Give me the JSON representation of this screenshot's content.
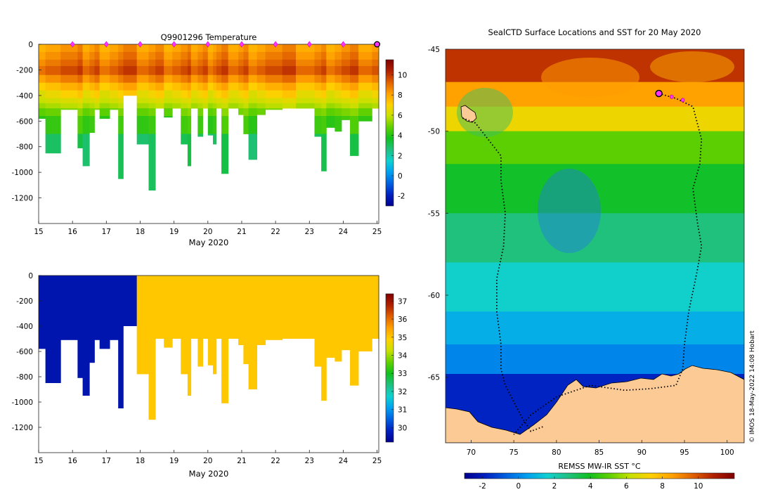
{
  "colormap": [
    "#00008f",
    "#0020c0",
    "#0060e0",
    "#00a0f0",
    "#10d0d0",
    "#20c080",
    "#10c020",
    "#60d000",
    "#c8e000",
    "#ffd000",
    "#ffa000",
    "#e06000",
    "#b02000",
    "#800000"
  ],
  "panel_temp": {
    "chart_data": {
      "type": "heatmap",
      "title": "Q9901296  Temperature",
      "xlabel": "May 2020",
      "ylabel": "",
      "xlim": [
        15,
        25.05
      ],
      "ylim": [
        -1400,
        0
      ],
      "x_ticks": [
        "15",
        "16",
        "17",
        "18",
        "19",
        "20",
        "21",
        "22",
        "23",
        "24",
        "25"
      ],
      "y_ticks": [
        "0",
        "-200",
        "-400",
        "-600",
        "-800",
        "-1000",
        "-1200"
      ],
      "profile_marker_days": [
        16,
        17,
        18,
        19,
        20,
        21,
        22,
        23,
        24
      ],
      "last_profile_marker_day": 25,
      "columns": [
        {
          "t0": 15.0,
          "t1": 15.2,
          "depth": 580
        },
        {
          "t0": 15.2,
          "t1": 15.65,
          "depth": 850
        },
        {
          "t0": 15.65,
          "t1": 16.15,
          "depth": 510
        },
        {
          "t0": 16.15,
          "t1": 16.3,
          "depth": 810
        },
        {
          "t0": 16.3,
          "t1": 16.5,
          "depth": 950
        },
        {
          "t0": 16.5,
          "t1": 16.65,
          "depth": 690
        },
        {
          "t0": 16.65,
          "t1": 16.8,
          "depth": 510
        },
        {
          "t0": 16.8,
          "t1": 17.1,
          "depth": 580
        },
        {
          "t0": 17.1,
          "t1": 17.35,
          "depth": 510
        },
        {
          "t0": 17.35,
          "t1": 17.5,
          "depth": 1050
        },
        {
          "t0": 17.5,
          "t1": 17.9,
          "depth": 400
        },
        {
          "t0": 17.9,
          "t1": 18.25,
          "depth": 780
        },
        {
          "t0": 18.25,
          "t1": 18.45,
          "depth": 1140
        },
        {
          "t0": 18.45,
          "t1": 18.7,
          "depth": 500
        },
        {
          "t0": 18.7,
          "t1": 18.95,
          "depth": 570
        },
        {
          "t0": 18.95,
          "t1": 19.2,
          "depth": 500
        },
        {
          "t0": 19.2,
          "t1": 19.4,
          "depth": 780
        },
        {
          "t0": 19.4,
          "t1": 19.5,
          "depth": 950
        },
        {
          "t0": 19.5,
          "t1": 19.7,
          "depth": 500
        },
        {
          "t0": 19.7,
          "t1": 19.85,
          "depth": 720
        },
        {
          "t0": 19.85,
          "t1": 20.0,
          "depth": 500
        },
        {
          "t0": 20.0,
          "t1": 20.15,
          "depth": 710
        },
        {
          "t0": 20.15,
          "t1": 20.25,
          "depth": 780
        },
        {
          "t0": 20.25,
          "t1": 20.4,
          "depth": 500
        },
        {
          "t0": 20.4,
          "t1": 20.6,
          "depth": 1010
        },
        {
          "t0": 20.6,
          "t1": 20.9,
          "depth": 500
        },
        {
          "t0": 20.9,
          "t1": 21.05,
          "depth": 550
        },
        {
          "t0": 21.05,
          "t1": 21.2,
          "depth": 700
        },
        {
          "t0": 21.2,
          "t1": 21.45,
          "depth": 900
        },
        {
          "t0": 21.45,
          "t1": 21.7,
          "depth": 550
        },
        {
          "t0": 21.7,
          "t1": 22.2,
          "depth": 510
        },
        {
          "t0": 22.2,
          "t1": 22.6,
          "depth": 500
        },
        {
          "t0": 22.6,
          "t1": 23.15,
          "depth": 500
        },
        {
          "t0": 23.15,
          "t1": 23.35,
          "depth": 720
        },
        {
          "t0": 23.35,
          "t1": 23.5,
          "depth": 990
        },
        {
          "t0": 23.5,
          "t1": 23.75,
          "depth": 650
        },
        {
          "t0": 23.75,
          "t1": 23.95,
          "depth": 680
        },
        {
          "t0": 23.95,
          "t1": 24.2,
          "depth": 590
        },
        {
          "t0": 24.2,
          "t1": 24.45,
          "depth": 870
        },
        {
          "t0": 24.45,
          "t1": 24.85,
          "depth": 600
        },
        {
          "t0": 24.85,
          "t1": 25.05,
          "depth": 500
        }
      ],
      "colorbar": {
        "min": -3,
        "max": 11.5,
        "ticks": [
          "10",
          "8",
          "6",
          "4",
          "2",
          "0",
          "-2"
        ]
      },
      "layers": [
        {
          "d0": 0,
          "d1": 60,
          "value": 8.2
        },
        {
          "d0": 60,
          "d1": 120,
          "value": 8.6
        },
        {
          "d0": 120,
          "d1": 170,
          "value": 9.0
        },
        {
          "d0": 170,
          "d1": 240,
          "value": 9.5
        },
        {
          "d0": 240,
          "d1": 300,
          "value": 8.6
        },
        {
          "d0": 300,
          "d1": 360,
          "value": 7.6
        },
        {
          "d0": 360,
          "d1": 420,
          "value": 6.8
        },
        {
          "d0": 420,
          "d1": 460,
          "value": 6.2
        },
        {
          "d0": 460,
          "d1": 500,
          "value": 5.7
        },
        {
          "d0": 500,
          "d1": 560,
          "value": 5.0
        },
        {
          "d0": 560,
          "d1": 700,
          "value": 4.3
        },
        {
          "d0": 700,
          "d1": 2000,
          "value": 3.0
        }
      ]
    }
  },
  "panel_sal": {
    "chart_data": {
      "type": "heatmap",
      "title": "",
      "xlabel": "May 2020",
      "xlim": [
        15,
        25.05
      ],
      "ylim": [
        -1400,
        0
      ],
      "x_ticks": [
        "15",
        "16",
        "17",
        "18",
        "19",
        "20",
        "21",
        "22",
        "23",
        "24",
        "25"
      ],
      "y_ticks": [
        "0",
        "-200",
        "-400",
        "-600",
        "-800",
        "-1000",
        "-1200"
      ],
      "colorbar": {
        "min": 29.2,
        "max": 37.4,
        "ticks": [
          "37",
          "36",
          "35",
          "34",
          "33",
          "32",
          "31",
          "30"
        ]
      },
      "segments": [
        {
          "t0": 15.0,
          "t1": 17.9,
          "value": 29.6
        },
        {
          "t0": 17.9,
          "t1": 25.05,
          "value": 35.0
        }
      ]
    }
  },
  "panel_map": {
    "chart_data": {
      "type": "heatmap",
      "title": "SealCTD Surface Locations and SST for 20 May 2020",
      "colorbar_label": "REMSS MW-IR SST °C",
      "xlim": [
        67,
        102
      ],
      "ylim": [
        -69,
        -45
      ],
      "x_ticks": [
        "70",
        "75",
        "80",
        "85",
        "90",
        "95",
        "100"
      ],
      "y_ticks": [
        "-45",
        "-50",
        "-55",
        "-60",
        "-65"
      ],
      "colorbar": {
        "min": -3,
        "max": 12,
        "ticks": [
          "-2",
          "0",
          "2",
          "4",
          "6",
          "8",
          "10"
        ]
      },
      "sst_bands": [
        {
          "lat0": -45,
          "lat1": -47,
          "value": 10.5
        },
        {
          "lat0": -47,
          "lat1": -48.5,
          "value": 8.5
        },
        {
          "lat0": -48.5,
          "lat1": -50,
          "value": 7.0
        },
        {
          "lat0": -50,
          "lat1": -52,
          "value": 5.0
        },
        {
          "lat0": -52,
          "lat1": -55,
          "value": 3.8
        },
        {
          "lat0": -55,
          "lat1": -58,
          "value": 2.8
        },
        {
          "lat0": -58,
          "lat1": -61,
          "value": 1.7
        },
        {
          "lat0": -61,
          "lat1": -63,
          "value": 0.8
        },
        {
          "lat0": -63,
          "lat1": -64.8,
          "value": 0.0
        },
        {
          "lat0": -64.8,
          "lat1": -69,
          "value": -1.8
        }
      ],
      "track_west": [
        [
          69.0,
          -49.2
        ],
        [
          70.5,
          -49.5
        ],
        [
          72.0,
          -50.5
        ],
        [
          73.5,
          -51.5
        ],
        [
          73.5,
          -53.0
        ],
        [
          74.0,
          -55.0
        ],
        [
          73.8,
          -57.0
        ],
        [
          73.0,
          -59.0
        ],
        [
          73.0,
          -61.0
        ],
        [
          73.5,
          -63.0
        ],
        [
          73.5,
          -64.5
        ],
        [
          74.0,
          -65.5
        ],
        [
          75.0,
          -66.5
        ],
        [
          76.0,
          -67.5
        ],
        [
          77.0,
          -68.3
        ],
        [
          78.5,
          -68.0
        ]
      ],
      "track_east": [
        [
          92.0,
          -47.7
        ],
        [
          94.0,
          -48.0
        ],
        [
          96.0,
          -48.5
        ],
        [
          97.0,
          -50.5
        ],
        [
          96.8,
          -52.0
        ],
        [
          96.0,
          -53.5
        ],
        [
          96.5,
          -55.5
        ],
        [
          97.0,
          -57.0
        ],
        [
          96.5,
          -58.5
        ],
        [
          95.5,
          -61.0
        ],
        [
          95.0,
          -63.0
        ],
        [
          94.8,
          -64.5
        ],
        [
          94.0,
          -65.5
        ],
        [
          91.0,
          -65.7
        ],
        [
          88.0,
          -65.8
        ],
        [
          84.0,
          -65.5
        ],
        [
          80.0,
          -66.2
        ],
        [
          77.0,
          -67.3
        ],
        [
          75.0,
          -68.5
        ]
      ],
      "current_position": [
        92.0,
        -47.7
      ],
      "last_positions": [
        [
          93.5,
          -47.9
        ],
        [
          94.8,
          -48.1
        ]
      ],
      "credit": "© IMOS 18-May-2022 14:08 Hobart"
    }
  }
}
